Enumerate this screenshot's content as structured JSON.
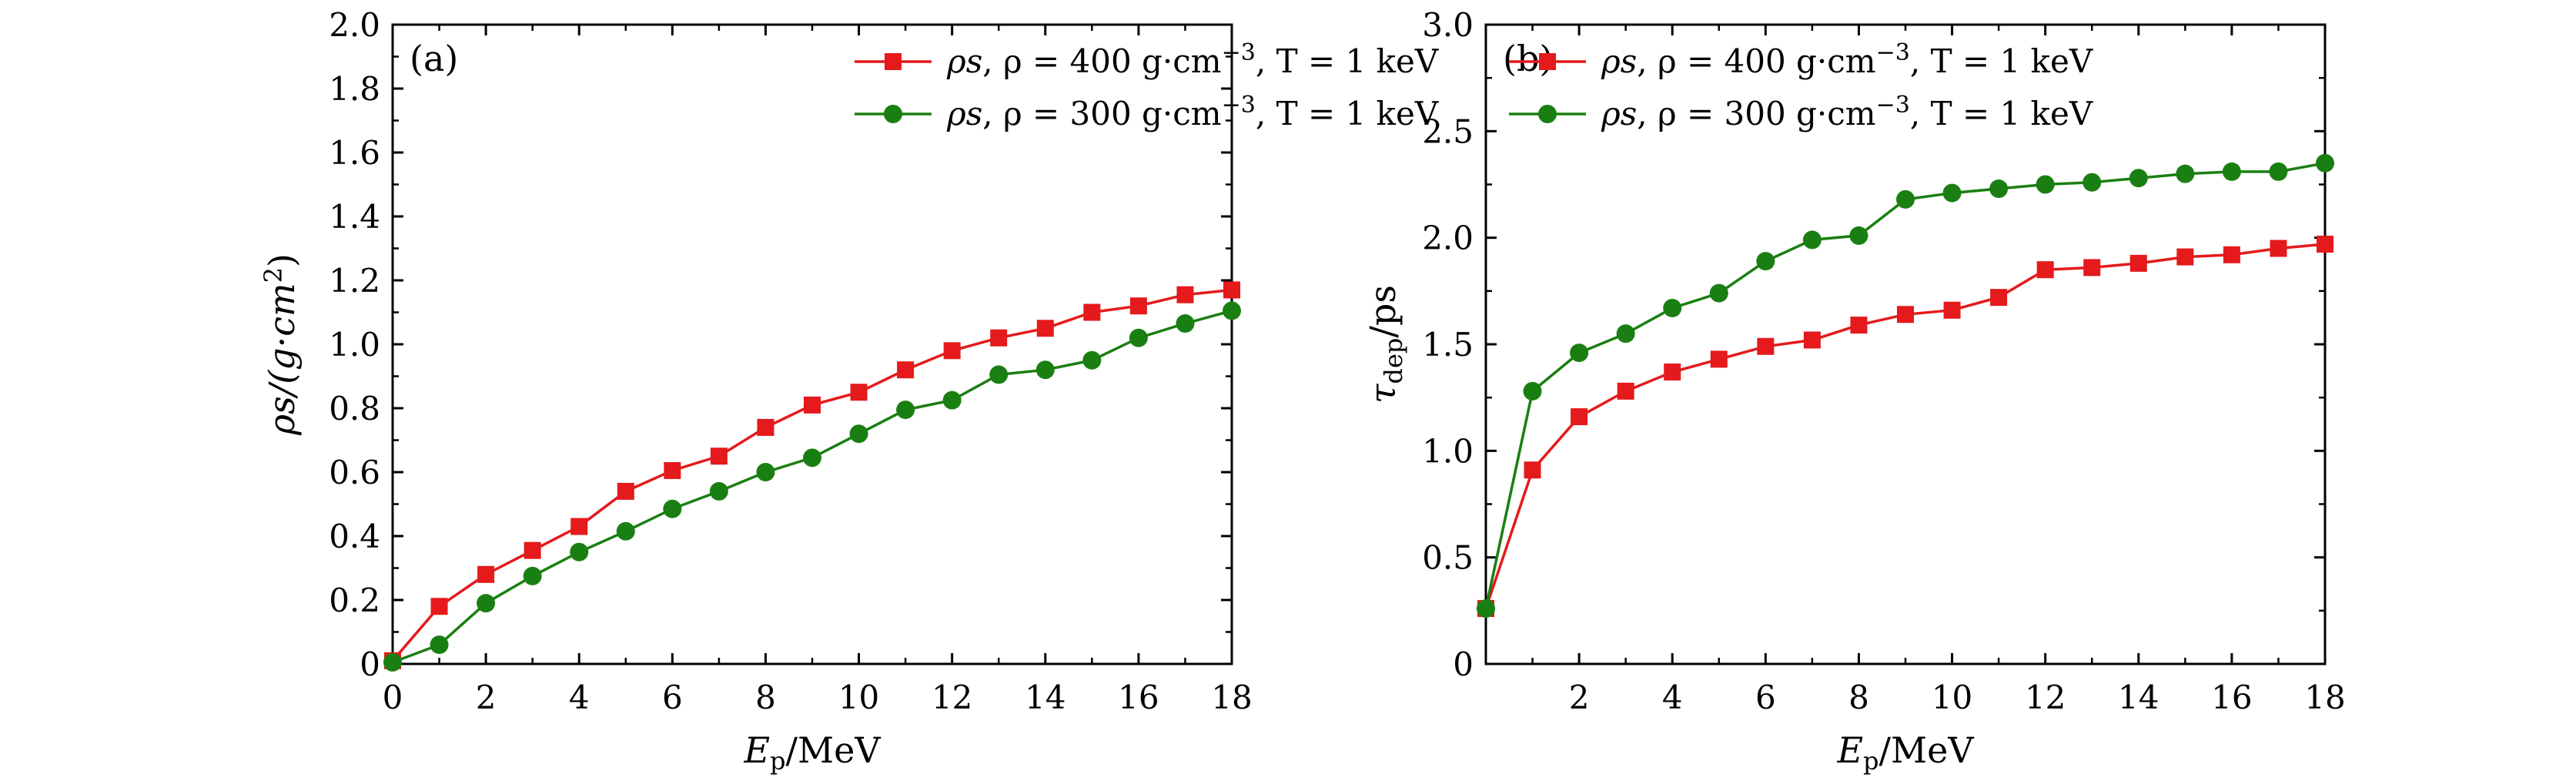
{
  "chart_data": [
    {
      "type": "line",
      "panel": "(a)",
      "xlabel": {
        "main": "E",
        "sub": "p",
        "rest": "/MeV"
      },
      "ylabel": {
        "main": "ρs/(g·cm",
        "sup": "2",
        "tail": ")"
      },
      "xlim": [
        0,
        18
      ],
      "ylim": [
        0,
        2.0
      ],
      "xticks": [
        0,
        2,
        4,
        6,
        8,
        10,
        12,
        14,
        16,
        18
      ],
      "xtick_labels": [
        "0",
        "2",
        "4",
        "6",
        "8",
        "10",
        "12",
        "14",
        "16",
        "18"
      ],
      "yticks": [
        0,
        0.2,
        0.4,
        0.6,
        0.8,
        1.0,
        1.2,
        1.4,
        1.6,
        1.8,
        2.0
      ],
      "ytick_labels": [
        "0",
        "0.2",
        "0.4",
        "0.6",
        "0.8",
        "1.0",
        "1.2",
        "1.4",
        "1.6",
        "1.8",
        "2.0"
      ],
      "legend_position": "top-right",
      "series": [
        {
          "name": "ρs, ρ = 400 g·cm⁻³, T = 1 keV",
          "legend": {
            "a": "ρs",
            "b": ", ρ = 400 g·cm",
            "sup": "−3",
            "c": ", T =  1 keV"
          },
          "color": "#e41a1c",
          "marker": "square",
          "x": [
            0,
            1,
            2,
            3,
            4,
            5,
            6,
            7,
            8,
            9,
            10,
            11,
            12,
            13,
            14,
            15,
            16,
            17,
            18
          ],
          "values": [
            0.01,
            0.18,
            0.28,
            0.355,
            0.43,
            0.54,
            0.605,
            0.65,
            0.74,
            0.81,
            0.85,
            0.92,
            0.98,
            1.02,
            1.05,
            1.1,
            1.12,
            1.155,
            1.17
          ]
        },
        {
          "name": "ρs, ρ = 300 g·cm⁻³, T = 1 keV",
          "legend": {
            "a": "ρs",
            "b": ", ρ = 300 g·cm",
            "sup": "−3",
            "c": ", T =  1 keV"
          },
          "color": "#1a7f12",
          "marker": "circle",
          "x": [
            0,
            1,
            2,
            3,
            4,
            5,
            6,
            7,
            8,
            9,
            10,
            11,
            12,
            13,
            14,
            15,
            16,
            17,
            18
          ],
          "values": [
            0.005,
            0.06,
            0.19,
            0.275,
            0.35,
            0.415,
            0.485,
            0.54,
            0.6,
            0.645,
            0.72,
            0.795,
            0.825,
            0.905,
            0.92,
            0.95,
            1.02,
            1.065,
            1.105
          ]
        }
      ]
    },
    {
      "type": "line",
      "panel": "(b)",
      "xlabel": {
        "main": "E",
        "sub": "p",
        "rest": "/MeV"
      },
      "ylabel": {
        "main": "τ",
        "sub": "dep",
        "tail": "/ps"
      },
      "xlim": [
        0,
        18
      ],
      "ylim": [
        0,
        3.0
      ],
      "xticks": [
        2,
        4,
        6,
        8,
        10,
        12,
        14,
        16,
        18
      ],
      "xtick_labels": [
        "2",
        "4",
        "6",
        "8",
        "10",
        "12",
        "14",
        "16",
        "18"
      ],
      "yticks": [
        0,
        0.5,
        1.0,
        1.5,
        2.0,
        2.5,
        3.0
      ],
      "ytick_labels": [
        "0",
        "0.5",
        "1.0",
        "1.5",
        "2.0",
        "2.5",
        "3.0"
      ],
      "legend_position": "top-right",
      "series": [
        {
          "name": "ρs, ρ = 400 g·cm⁻³, T = 1 keV",
          "legend": {
            "a": "ρs",
            "b": ", ρ = 400 g·cm",
            "sup": "−3",
            "c": ", T =  1 keV"
          },
          "color": "#e41a1c",
          "marker": "square",
          "x": [
            0,
            1,
            2,
            3,
            4,
            5,
            6,
            7,
            8,
            9,
            10,
            11,
            12,
            13,
            14,
            15,
            16,
            17,
            18
          ],
          "values": [
            0.26,
            0.91,
            1.16,
            1.28,
            1.37,
            1.43,
            1.49,
            1.52,
            1.59,
            1.64,
            1.66,
            1.72,
            1.85,
            1.86,
            1.88,
            1.91,
            1.92,
            1.95,
            1.97
          ]
        },
        {
          "name": "ρs, ρ = 300 g·cm⁻³, T = 1 keV",
          "legend": {
            "a": "ρs",
            "b": ", ρ = 300 g·cm",
            "sup": "−3",
            "c": ", T =  1 keV"
          },
          "color": "#1a7f12",
          "marker": "circle",
          "x": [
            0,
            1,
            2,
            3,
            4,
            5,
            6,
            7,
            8,
            9,
            10,
            11,
            12,
            13,
            14,
            15,
            16,
            17,
            18
          ],
          "values": [
            0.26,
            1.28,
            1.46,
            1.55,
            1.67,
            1.74,
            1.89,
            1.99,
            2.01,
            2.18,
            2.21,
            2.23,
            2.25,
            2.26,
            2.28,
            2.3,
            2.31,
            2.31,
            2.35
          ]
        }
      ]
    }
  ]
}
